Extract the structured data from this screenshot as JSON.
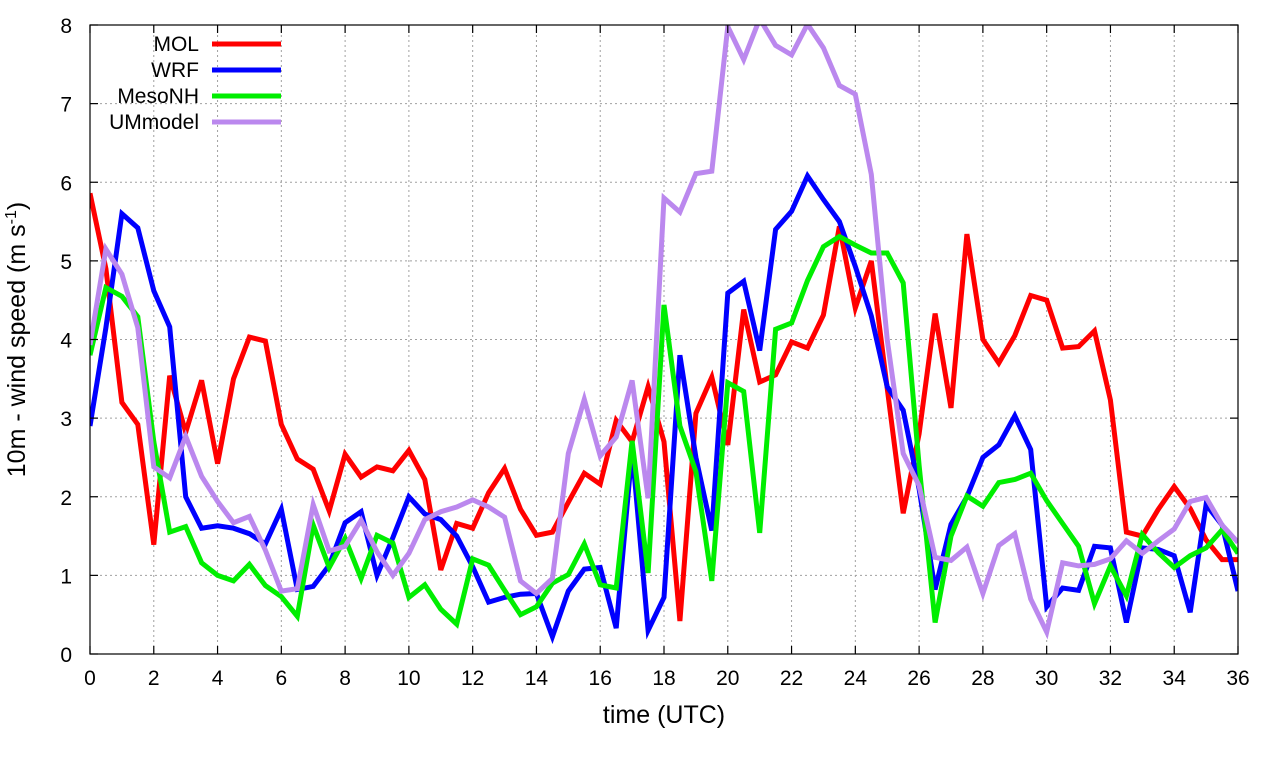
{
  "chart_data": {
    "type": "line",
    "xlabel": "time (UTC)",
    "ylabel": "10m - wind speed  (m s",
    "ylabel_sup": "-1",
    "ylabel_end": ")",
    "xlim": [
      0,
      36
    ],
    "ylim": [
      0,
      8
    ],
    "xticks": [
      0,
      2,
      4,
      6,
      8,
      10,
      12,
      14,
      16,
      18,
      20,
      22,
      24,
      26,
      28,
      30,
      32,
      34,
      36
    ],
    "yticks": [
      0,
      1,
      2,
      3,
      4,
      5,
      6,
      7,
      8
    ],
    "grid": true,
    "legend_position": "top-left",
    "x": [
      0,
      0.5,
      1,
      1.5,
      2,
      2.5,
      3,
      3.5,
      4,
      4.5,
      5,
      5.5,
      6,
      6.5,
      7,
      7.5,
      8,
      8.5,
      9,
      9.5,
      10,
      10.5,
      11,
      11.5,
      12,
      12.5,
      13,
      13.5,
      14,
      14.5,
      15,
      15.5,
      16,
      16.5,
      17,
      17.5,
      18,
      18.5,
      19,
      19.5,
      20,
      20.5,
      21,
      21.5,
      22,
      22.5,
      23,
      23.5,
      24,
      24.5,
      25,
      25.5,
      26,
      26.5,
      27,
      27.5,
      28,
      28.5,
      29,
      29.5,
      30,
      30.5,
      31,
      31.5,
      32,
      32.5,
      33,
      33.5,
      34,
      34.5,
      35,
      35.5,
      36
    ],
    "series": [
      {
        "name": "MOL",
        "color": "#ff0000",
        "values": [
          5.86,
          4.9,
          3.2,
          2.92,
          1.39,
          3.54,
          2.82,
          3.48,
          2.42,
          3.5,
          4.03,
          3.98,
          2.92,
          2.48,
          2.35,
          1.82,
          2.54,
          2.25,
          2.38,
          2.33,
          2.59,
          2.22,
          1.07,
          1.66,
          1.6,
          2.05,
          2.36,
          1.84,
          1.51,
          1.55,
          1.93,
          2.3,
          2.16,
          2.97,
          2.7,
          3.4,
          2.7,
          0.42,
          3.06,
          3.52,
          2.66,
          4.38,
          3.46,
          3.55,
          3.97,
          3.89,
          4.31,
          5.44,
          4.4,
          5.0,
          3.38,
          1.79,
          2.8,
          4.33,
          3.13,
          5.34,
          4.0,
          3.7,
          4.05,
          4.56,
          4.5,
          3.89,
          3.91,
          4.11,
          3.23,
          1.55,
          1.5,
          1.84,
          2.13,
          1.85,
          1.45,
          1.2,
          1.2
        ]
      },
      {
        "name": "WRF",
        "color": "#0000ff",
        "values": [
          2.9,
          4.15,
          5.6,
          5.42,
          4.62,
          4.16,
          2.0,
          1.6,
          1.63,
          1.6,
          1.53,
          1.4,
          1.84,
          0.82,
          0.86,
          1.13,
          1.67,
          1.81,
          1.0,
          1.48,
          2.0,
          1.78,
          1.71,
          1.5,
          1.11,
          0.66,
          0.72,
          0.76,
          0.77,
          0.22,
          0.8,
          1.08,
          1.1,
          0.33,
          2.6,
          0.3,
          0.72,
          3.8,
          2.5,
          1.57,
          4.59,
          4.74,
          3.86,
          5.4,
          5.63,
          6.08,
          5.78,
          5.5,
          4.93,
          4.3,
          3.4,
          3.1,
          2.1,
          0.82,
          1.65,
          2.0,
          2.5,
          2.66,
          3.03,
          2.6,
          0.6,
          0.84,
          0.81,
          1.37,
          1.35,
          0.4,
          1.35,
          1.33,
          1.25,
          0.53,
          1.9,
          1.64,
          0.8
        ]
      },
      {
        "name": "MesoNH",
        "color": "#00ee00",
        "values": [
          3.8,
          4.66,
          4.55,
          4.29,
          2.7,
          1.55,
          1.62,
          1.16,
          1.0,
          0.93,
          1.14,
          0.87,
          0.73,
          0.48,
          1.64,
          1.1,
          1.47,
          0.96,
          1.51,
          1.41,
          0.72,
          0.88,
          0.57,
          0.38,
          1.21,
          1.13,
          0.81,
          0.5,
          0.6,
          0.9,
          1.01,
          1.4,
          0.88,
          0.84,
          2.71,
          1.03,
          4.44,
          2.9,
          2.32,
          0.93,
          3.45,
          3.34,
          1.54,
          4.13,
          4.21,
          4.75,
          5.18,
          5.31,
          5.2,
          5.1,
          5.1,
          4.72,
          2.4,
          0.4,
          1.5,
          2.01,
          1.88,
          2.18,
          2.22,
          2.3,
          1.95,
          1.66,
          1.37,
          0.64,
          1.12,
          0.74,
          1.52,
          1.29,
          1.1,
          1.25,
          1.35,
          1.58,
          1.28
        ]
      },
      {
        "name": "UMmodel",
        "color": "#bb88ee",
        "values": [
          3.93,
          5.15,
          4.83,
          4.15,
          2.38,
          2.24,
          2.77,
          2.26,
          1.94,
          1.67,
          1.75,
          1.32,
          0.8,
          0.83,
          1.9,
          1.31,
          1.37,
          1.7,
          1.3,
          1.0,
          1.28,
          1.71,
          1.81,
          1.87,
          1.96,
          1.87,
          1.74,
          0.93,
          0.77,
          0.96,
          2.55,
          3.24,
          2.52,
          2.76,
          3.48,
          1.98,
          5.8,
          5.62,
          6.11,
          6.14,
          7.98,
          7.56,
          8.08,
          7.74,
          7.62,
          8.01,
          7.71,
          7.23,
          7.12,
          6.1,
          4.0,
          2.55,
          2.14,
          1.23,
          1.19,
          1.36,
          0.77,
          1.38,
          1.53,
          0.7,
          0.28,
          1.16,
          1.12,
          1.14,
          1.21,
          1.44,
          1.28,
          1.44,
          1.59,
          1.94,
          1.99,
          1.64,
          1.42
        ]
      }
    ]
  }
}
